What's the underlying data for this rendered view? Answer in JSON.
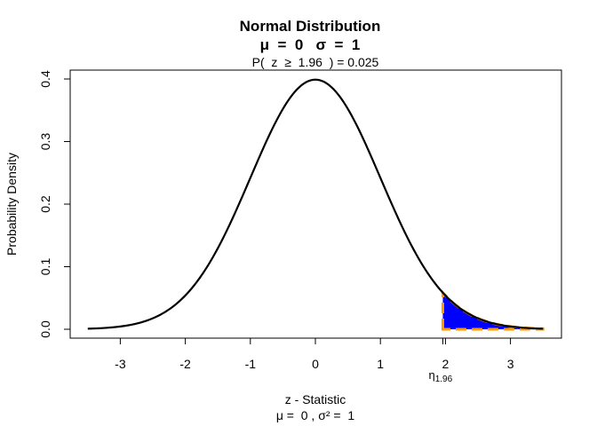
{
  "chart_data": {
    "type": "area",
    "title": "Normal Distribution",
    "subtitle": "μ  =  0   σ  =  1",
    "annotation": "P(  z  ≥  1.96  ) = 0.025",
    "xlabel": "z - Statistic",
    "xlabel2": "μ =  0 , σ² =  1",
    "ylabel": "Probability Density",
    "xlim": [
      -3.5,
      3.5
    ],
    "ylim": [
      0,
      0.4
    ],
    "x_ticks": [
      -3,
      -2,
      -1,
      0,
      1,
      2,
      3
    ],
    "y_ticks": [
      0.0,
      0.1,
      0.2,
      0.3,
      0.4
    ],
    "x_tick_labels": [
      "-3",
      "-2",
      "-1",
      "0",
      "1",
      "2",
      "3"
    ],
    "y_tick_labels": [
      "0.0",
      "0.1",
      "0.2",
      "0.3",
      "0.4"
    ],
    "grid": false,
    "distribution": {
      "mean": 0,
      "sd": 1
    },
    "shaded_region": {
      "from": 1.96,
      "to": 3.5,
      "probability": 0.025,
      "fill": "#0000ff",
      "border": "#ff9a00",
      "marker_label": "η",
      "marker_sub": "1.96"
    },
    "curve_color": "#000000"
  }
}
